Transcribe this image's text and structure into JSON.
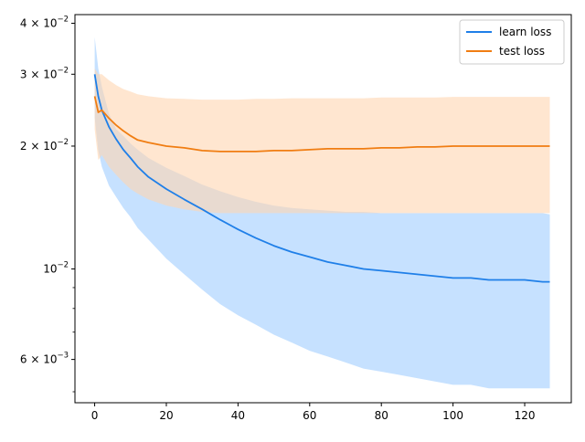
{
  "chart_data": {
    "type": "line",
    "title": "",
    "xlabel": "",
    "ylabel": "",
    "xlim": [
      -5.5,
      133
    ],
    "ylim": [
      0.0047,
      0.042
    ],
    "yscale": "log",
    "grid": false,
    "legend_position": "top-right",
    "x_ticks": [
      0,
      20,
      40,
      60,
      80,
      100,
      120
    ],
    "x_tick_labels": [
      "0",
      "20",
      "40",
      "60",
      "80",
      "100",
      "120"
    ],
    "y_major_ticks": [
      0.04,
      0.03,
      0.02,
      0.01,
      0.006
    ],
    "y_tick_labels": [
      {
        "mantissa": "4",
        "base": "10",
        "exp": "−2"
      },
      {
        "mantissa": "3",
        "base": "10",
        "exp": "−2"
      },
      {
        "mantissa": "2",
        "base": "10",
        "exp": "−2"
      },
      {
        "mantissa": "",
        "base": "10",
        "exp": "−2"
      },
      {
        "mantissa": "6",
        "base": "10",
        "exp": "−3"
      }
    ],
    "y_minor_ticks": [
      0.005,
      0.007,
      0.008,
      0.009
    ],
    "x": [
      0,
      1,
      2,
      4,
      6,
      8,
      10,
      12,
      15,
      20,
      25,
      30,
      35,
      40,
      45,
      50,
      55,
      60,
      65,
      70,
      75,
      80,
      85,
      90,
      95,
      100,
      105,
      110,
      115,
      120,
      125,
      127
    ],
    "series": [
      {
        "name": "learn loss",
        "color": "#1f7fe8",
        "band_color": "#b3d7ff",
        "values": [
          0.03,
          0.0265,
          0.0245,
          0.0223,
          0.0208,
          0.0196,
          0.0187,
          0.0178,
          0.0168,
          0.0157,
          0.0148,
          0.014,
          0.0132,
          0.0125,
          0.0119,
          0.0114,
          0.011,
          0.0107,
          0.0104,
          0.0102,
          0.01,
          0.0099,
          0.0098,
          0.0097,
          0.0096,
          0.0095,
          0.0095,
          0.0094,
          0.0094,
          0.0094,
          0.0093,
          0.0093
        ],
        "upper": [
          0.037,
          0.031,
          0.028,
          0.024,
          0.022,
          0.0212,
          0.0203,
          0.0196,
          0.0187,
          0.0177,
          0.0169,
          0.0161,
          0.0155,
          0.015,
          0.0146,
          0.0143,
          0.0141,
          0.014,
          0.0139,
          0.0138,
          0.0138,
          0.0137,
          0.0137,
          0.0137,
          0.0137,
          0.0137,
          0.0137,
          0.0137,
          0.0137,
          0.0137,
          0.0137,
          0.0136
        ],
        "lower": [
          0.0235,
          0.0195,
          0.0178,
          0.016,
          0.015,
          0.0141,
          0.0134,
          0.0126,
          0.0118,
          0.0106,
          0.0097,
          0.0089,
          0.0082,
          0.0077,
          0.0073,
          0.0069,
          0.0066,
          0.0063,
          0.0061,
          0.0059,
          0.0057,
          0.0056,
          0.0055,
          0.0054,
          0.0053,
          0.0052,
          0.0052,
          0.0051,
          0.0051,
          0.0051,
          0.0051,
          0.0051
        ]
      },
      {
        "name": "test loss",
        "color": "#f07d12",
        "band_color": "#ffd5b0",
        "values": [
          0.0265,
          0.0242,
          0.0245,
          0.0234,
          0.0225,
          0.0218,
          0.0212,
          0.0207,
          0.0204,
          0.02,
          0.0198,
          0.0195,
          0.0194,
          0.0194,
          0.0194,
          0.0195,
          0.0195,
          0.0196,
          0.0197,
          0.0197,
          0.0197,
          0.0198,
          0.0198,
          0.0199,
          0.0199,
          0.02,
          0.02,
          0.02,
          0.02,
          0.02,
          0.02,
          0.02
        ],
        "upper": [
          0.031,
          0.03,
          0.03,
          0.029,
          0.0282,
          0.0276,
          0.0272,
          0.0268,
          0.0265,
          0.0262,
          0.0261,
          0.026,
          0.026,
          0.026,
          0.0261,
          0.0261,
          0.0262,
          0.0262,
          0.0262,
          0.0262,
          0.0262,
          0.0263,
          0.0263,
          0.0263,
          0.0263,
          0.0264,
          0.0264,
          0.0264,
          0.0264,
          0.0264,
          0.0264,
          0.0264
        ],
        "lower": [
          0.022,
          0.0185,
          0.019,
          0.0178,
          0.017,
          0.0163,
          0.0157,
          0.0153,
          0.0148,
          0.0143,
          0.014,
          0.0138,
          0.0137,
          0.0137,
          0.0137,
          0.0137,
          0.0137,
          0.0137,
          0.0137,
          0.0137,
          0.0137,
          0.0137,
          0.0137,
          0.0137,
          0.0137,
          0.0137,
          0.0137,
          0.0137,
          0.0137,
          0.0137,
          0.0137,
          0.0137
        ]
      }
    ]
  }
}
